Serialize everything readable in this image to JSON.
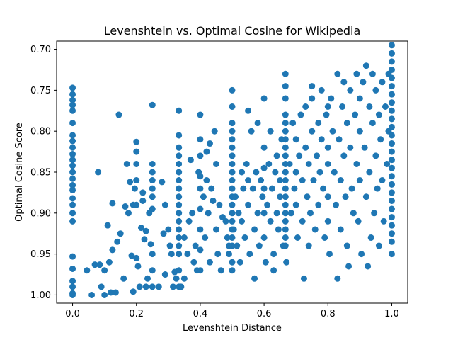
{
  "chart_data": {
    "type": "scatter",
    "title": "Levenshtein vs. Optimal Cosine for Wikipedia",
    "xlabel": "Levenshtein Distance",
    "ylabel": "Optimal Cosine Score",
    "xlim": [
      -0.05,
      1.05
    ],
    "ylim": [
      1.01,
      0.69
    ],
    "y_inverted": true,
    "grid": false,
    "legend": "none",
    "marker_color": "#1f77b4",
    "x_ticks": [
      "0.0",
      "0.2",
      "0.4",
      "0.6",
      "0.8",
      "1.0"
    ],
    "x_tick_values": [
      0.0,
      0.2,
      0.4,
      0.6,
      0.8,
      1.0
    ],
    "y_ticks": [
      "0.70",
      "0.75",
      "0.80",
      "0.85",
      "0.90",
      "0.95",
      "1.00"
    ],
    "y_tick_values": [
      0.7,
      0.75,
      0.8,
      0.85,
      0.9,
      0.95,
      1.0
    ],
    "points": [
      [
        0.0,
        0.747
      ],
      [
        0.0,
        0.755
      ],
      [
        0.0,
        0.762
      ],
      [
        0.0,
        0.768
      ],
      [
        0.0,
        0.775
      ],
      [
        0.0,
        0.79
      ],
      [
        0.0,
        0.805
      ],
      [
        0.0,
        0.812
      ],
      [
        0.0,
        0.82
      ],
      [
        0.0,
        0.828
      ],
      [
        0.0,
        0.835
      ],
      [
        0.0,
        0.842
      ],
      [
        0.0,
        0.85
      ],
      [
        0.0,
        0.858
      ],
      [
        0.0,
        0.866
      ],
      [
        0.0,
        0.872
      ],
      [
        0.0,
        0.882
      ],
      [
        0.0,
        0.89
      ],
      [
        0.0,
        0.9
      ],
      [
        0.0,
        0.91
      ],
      [
        0.0,
        0.953
      ],
      [
        0.0,
        0.968
      ],
      [
        0.0,
        0.983
      ],
      [
        0.0,
        0.99
      ],
      [
        0.0,
        0.998
      ],
      [
        0.0,
        1.0
      ],
      [
        0.045,
        0.97
      ],
      [
        0.06,
        1.0
      ],
      [
        0.07,
        0.963
      ],
      [
        0.08,
        0.85
      ],
      [
        0.085,
        0.963
      ],
      [
        0.09,
        0.99
      ],
      [
        0.1,
        0.97
      ],
      [
        0.1,
        1.0
      ],
      [
        0.11,
        0.915
      ],
      [
        0.115,
        0.96
      ],
      [
        0.12,
        0.997
      ],
      [
        0.125,
        0.888
      ],
      [
        0.125,
        0.945
      ],
      [
        0.135,
        0.997
      ],
      [
        0.14,
        0.935
      ],
      [
        0.145,
        0.78
      ],
      [
        0.15,
        0.925
      ],
      [
        0.16,
        0.98
      ],
      [
        0.165,
        0.892
      ],
      [
        0.17,
        0.84
      ],
      [
        0.175,
        0.9
      ],
      [
        0.18,
        0.862
      ],
      [
        0.185,
        0.952
      ],
      [
        0.19,
        0.89
      ],
      [
        0.19,
        0.996
      ],
      [
        0.195,
        0.87
      ],
      [
        0.2,
        0.813
      ],
      [
        0.2,
        0.825
      ],
      [
        0.2,
        0.84
      ],
      [
        0.2,
        0.86
      ],
      [
        0.2,
        0.89
      ],
      [
        0.2,
        0.955
      ],
      [
        0.205,
        0.965
      ],
      [
        0.21,
        0.99
      ],
      [
        0.215,
        0.918
      ],
      [
        0.22,
        0.885
      ],
      [
        0.22,
        0.875
      ],
      [
        0.225,
        0.932
      ],
      [
        0.23,
        0.922
      ],
      [
        0.23,
        0.99
      ],
      [
        0.235,
        0.98
      ],
      [
        0.24,
        0.9
      ],
      [
        0.245,
        0.938
      ],
      [
        0.25,
        0.768
      ],
      [
        0.25,
        0.84
      ],
      [
        0.25,
        0.85
      ],
      [
        0.25,
        0.86
      ],
      [
        0.25,
        0.87
      ],
      [
        0.25,
        0.88
      ],
      [
        0.25,
        0.895
      ],
      [
        0.25,
        0.95
      ],
      [
        0.25,
        0.97
      ],
      [
        0.25,
        0.99
      ],
      [
        0.27,
        0.99
      ],
      [
        0.28,
        0.862
      ],
      [
        0.285,
        0.925
      ],
      [
        0.29,
        0.89
      ],
      [
        0.29,
        0.975
      ],
      [
        0.3,
        0.92
      ],
      [
        0.305,
        0.94
      ],
      [
        0.31,
        0.95
      ],
      [
        0.315,
        0.99
      ],
      [
        0.32,
        0.972
      ],
      [
        0.325,
        0.98
      ],
      [
        0.333,
        0.775
      ],
      [
        0.333,
        0.805
      ],
      [
        0.333,
        0.82
      ],
      [
        0.333,
        0.83
      ],
      [
        0.333,
        0.84
      ],
      [
        0.333,
        0.85
      ],
      [
        0.333,
        0.86
      ],
      [
        0.333,
        0.87
      ],
      [
        0.333,
        0.88
      ],
      [
        0.333,
        0.89
      ],
      [
        0.333,
        0.9
      ],
      [
        0.333,
        0.91
      ],
      [
        0.333,
        0.92
      ],
      [
        0.333,
        0.93
      ],
      [
        0.333,
        0.94
      ],
      [
        0.333,
        0.95
      ],
      [
        0.333,
        0.97
      ],
      [
        0.333,
        0.99
      ],
      [
        0.34,
        0.99
      ],
      [
        0.35,
        0.93
      ],
      [
        0.35,
        0.98
      ],
      [
        0.36,
        0.95
      ],
      [
        0.365,
        0.91
      ],
      [
        0.37,
        0.835
      ],
      [
        0.375,
        0.9
      ],
      [
        0.38,
        0.96
      ],
      [
        0.385,
        0.94
      ],
      [
        0.39,
        0.97
      ],
      [
        0.395,
        0.85
      ],
      [
        0.4,
        0.78
      ],
      [
        0.4,
        0.81
      ],
      [
        0.4,
        0.83
      ],
      [
        0.4,
        0.855
      ],
      [
        0.4,
        0.87
      ],
      [
        0.4,
        0.895
      ],
      [
        0.4,
        0.92
      ],
      [
        0.4,
        0.945
      ],
      [
        0.4,
        0.97
      ],
      [
        0.41,
        0.88
      ],
      [
        0.415,
        0.93
      ],
      [
        0.42,
        0.86
      ],
      [
        0.42,
        0.825
      ],
      [
        0.425,
        0.9
      ],
      [
        0.43,
        0.815
      ],
      [
        0.43,
        0.96
      ],
      [
        0.435,
        0.87
      ],
      [
        0.44,
        0.885
      ],
      [
        0.445,
        0.8
      ],
      [
        0.45,
        0.84
      ],
      [
        0.45,
        0.92
      ],
      [
        0.455,
        0.95
      ],
      [
        0.46,
        0.89
      ],
      [
        0.465,
        0.97
      ],
      [
        0.47,
        0.905
      ],
      [
        0.48,
        0.91
      ],
      [
        0.485,
        0.93
      ],
      [
        0.49,
        0.94
      ],
      [
        0.49,
        0.95
      ],
      [
        0.5,
        0.75
      ],
      [
        0.5,
        0.77
      ],
      [
        0.5,
        0.79
      ],
      [
        0.5,
        0.8
      ],
      [
        0.5,
        0.81
      ],
      [
        0.5,
        0.82
      ],
      [
        0.5,
        0.83
      ],
      [
        0.5,
        0.84
      ],
      [
        0.5,
        0.85
      ],
      [
        0.5,
        0.86
      ],
      [
        0.5,
        0.87
      ],
      [
        0.5,
        0.88
      ],
      [
        0.5,
        0.89
      ],
      [
        0.5,
        0.9
      ],
      [
        0.5,
        0.91
      ],
      [
        0.5,
        0.92
      ],
      [
        0.5,
        0.93
      ],
      [
        0.5,
        0.94
      ],
      [
        0.5,
        0.96
      ],
      [
        0.5,
        0.97
      ],
      [
        0.505,
        0.92
      ],
      [
        0.51,
        0.88
      ],
      [
        0.515,
        0.94
      ],
      [
        0.52,
        0.9
      ],
      [
        0.525,
        0.96
      ],
      [
        0.53,
        0.85
      ],
      [
        0.53,
        0.91
      ],
      [
        0.535,
        0.87
      ],
      [
        0.54,
        0.93
      ],
      [
        0.545,
        0.84
      ],
      [
        0.55,
        0.775
      ],
      [
        0.55,
        0.86
      ],
      [
        0.55,
        0.89
      ],
      [
        0.555,
        0.95
      ],
      [
        0.56,
        0.8
      ],
      [
        0.565,
        0.87
      ],
      [
        0.57,
        0.92
      ],
      [
        0.57,
        0.98
      ],
      [
        0.575,
        0.85
      ],
      [
        0.58,
        0.79
      ],
      [
        0.58,
        0.9
      ],
      [
        0.585,
        0.94
      ],
      [
        0.59,
        0.86
      ],
      [
        0.595,
        0.88
      ],
      [
        0.6,
        0.76
      ],
      [
        0.6,
        0.82
      ],
      [
        0.6,
        0.845
      ],
      [
        0.6,
        0.87
      ],
      [
        0.6,
        0.9
      ],
      [
        0.6,
        0.93
      ],
      [
        0.605,
        0.96
      ],
      [
        0.61,
        0.89
      ],
      [
        0.615,
        0.84
      ],
      [
        0.62,
        0.8
      ],
      [
        0.62,
        0.91
      ],
      [
        0.625,
        0.87
      ],
      [
        0.63,
        0.95
      ],
      [
        0.63,
        0.97
      ],
      [
        0.635,
        0.85
      ],
      [
        0.64,
        0.83
      ],
      [
        0.64,
        0.9
      ],
      [
        0.645,
        0.92
      ],
      [
        0.65,
        0.86
      ],
      [
        0.65,
        0.88
      ],
      [
        0.655,
        0.81
      ],
      [
        0.66,
        0.94
      ],
      [
        0.667,
        0.73
      ],
      [
        0.667,
        0.745
      ],
      [
        0.667,
        0.76
      ],
      [
        0.667,
        0.78
      ],
      [
        0.667,
        0.79
      ],
      [
        0.667,
        0.8
      ],
      [
        0.667,
        0.81
      ],
      [
        0.667,
        0.82
      ],
      [
        0.667,
        0.83
      ],
      [
        0.667,
        0.84
      ],
      [
        0.667,
        0.85
      ],
      [
        0.667,
        0.86
      ],
      [
        0.667,
        0.87
      ],
      [
        0.667,
        0.88
      ],
      [
        0.667,
        0.89
      ],
      [
        0.667,
        0.9
      ],
      [
        0.667,
        0.91
      ],
      [
        0.667,
        0.92
      ],
      [
        0.667,
        0.93
      ],
      [
        0.667,
        0.94
      ],
      [
        0.67,
        0.96
      ],
      [
        0.68,
        0.84
      ],
      [
        0.685,
        0.9
      ],
      [
        0.69,
        0.79
      ],
      [
        0.695,
        0.87
      ],
      [
        0.7,
        0.81
      ],
      [
        0.7,
        0.85
      ],
      [
        0.7,
        0.89
      ],
      [
        0.705,
        0.93
      ],
      [
        0.71,
        0.83
      ],
      [
        0.715,
        0.78
      ],
      [
        0.72,
        0.86
      ],
      [
        0.72,
        0.91
      ],
      [
        0.725,
        0.98
      ],
      [
        0.73,
        0.77
      ],
      [
        0.73,
        0.82
      ],
      [
        0.735,
        0.88
      ],
      [
        0.74,
        0.84
      ],
      [
        0.74,
        0.94
      ],
      [
        0.745,
        0.9
      ],
      [
        0.75,
        0.745
      ],
      [
        0.75,
        0.8
      ],
      [
        0.75,
        0.76
      ],
      [
        0.755,
        0.86
      ],
      [
        0.76,
        0.92
      ],
      [
        0.765,
        0.83
      ],
      [
        0.77,
        0.79
      ],
      [
        0.77,
        0.89
      ],
      [
        0.775,
        0.85
      ],
      [
        0.78,
        0.75
      ],
      [
        0.78,
        0.81
      ],
      [
        0.785,
        0.87
      ],
      [
        0.79,
        0.93
      ],
      [
        0.795,
        0.78
      ],
      [
        0.8,
        0.77
      ],
      [
        0.8,
        0.82
      ],
      [
        0.8,
        0.84
      ],
      [
        0.8,
        0.88
      ],
      [
        0.8,
        0.91
      ],
      [
        0.805,
        0.95
      ],
      [
        0.81,
        0.76
      ],
      [
        0.815,
        0.8
      ],
      [
        0.82,
        0.85
      ],
      [
        0.825,
        0.89
      ],
      [
        0.83,
        0.73
      ],
      [
        0.83,
        0.98
      ],
      [
        0.835,
        0.81
      ],
      [
        0.84,
        0.86
      ],
      [
        0.84,
        0.92
      ],
      [
        0.845,
        0.77
      ],
      [
        0.85,
        0.74
      ],
      [
        0.85,
        0.83
      ],
      [
        0.855,
        0.88
      ],
      [
        0.86,
        0.79
      ],
      [
        0.86,
        0.94
      ],
      [
        0.865,
        0.965
      ],
      [
        0.87,
        0.75
      ],
      [
        0.87,
        0.82
      ],
      [
        0.875,
        0.87
      ],
      [
        0.88,
        0.9
      ],
      [
        0.885,
        0.78
      ],
      [
        0.89,
        0.84
      ],
      [
        0.89,
        0.73
      ],
      [
        0.895,
        0.91
      ],
      [
        0.9,
        0.76
      ],
      [
        0.9,
        0.8
      ],
      [
        0.9,
        0.86
      ],
      [
        0.905,
        0.95
      ],
      [
        0.91,
        0.74
      ],
      [
        0.915,
        0.82
      ],
      [
        0.92,
        0.88
      ],
      [
        0.92,
        0.72
      ],
      [
        0.925,
        0.965
      ],
      [
        0.93,
        0.77
      ],
      [
        0.93,
        0.85
      ],
      [
        0.935,
        0.93
      ],
      [
        0.94,
        0.79
      ],
      [
        0.94,
        0.73
      ],
      [
        0.945,
        0.9
      ],
      [
        0.95,
        0.75
      ],
      [
        0.95,
        0.83
      ],
      [
        0.955,
        0.87
      ],
      [
        0.96,
        0.94
      ],
      [
        0.96,
        0.78
      ],
      [
        0.965,
        0.81
      ],
      [
        0.97,
        0.86
      ],
      [
        0.97,
        0.74
      ],
      [
        0.975,
        0.91
      ],
      [
        0.98,
        0.77
      ],
      [
        0.985,
        0.84
      ],
      [
        0.99,
        0.8
      ],
      [
        0.99,
        0.73
      ],
      [
        1.0,
        0.695
      ],
      [
        1.0,
        0.705
      ],
      [
        1.0,
        0.715
      ],
      [
        1.0,
        0.725
      ],
      [
        1.0,
        0.735
      ],
      [
        1.0,
        0.745
      ],
      [
        1.0,
        0.755
      ],
      [
        1.0,
        0.765
      ],
      [
        1.0,
        0.775
      ],
      [
        1.0,
        0.785
      ],
      [
        1.0,
        0.795
      ],
      [
        1.0,
        0.805
      ],
      [
        1.0,
        0.815
      ],
      [
        1.0,
        0.825
      ],
      [
        1.0,
        0.835
      ],
      [
        1.0,
        0.845
      ],
      [
        1.0,
        0.855
      ],
      [
        1.0,
        0.865
      ],
      [
        1.0,
        0.875
      ],
      [
        1.0,
        0.885
      ],
      [
        1.0,
        0.895
      ],
      [
        1.0,
        0.905
      ],
      [
        1.0,
        0.915
      ],
      [
        1.0,
        0.925
      ],
      [
        1.0,
        0.935
      ],
      [
        1.0,
        0.95
      ]
    ]
  }
}
